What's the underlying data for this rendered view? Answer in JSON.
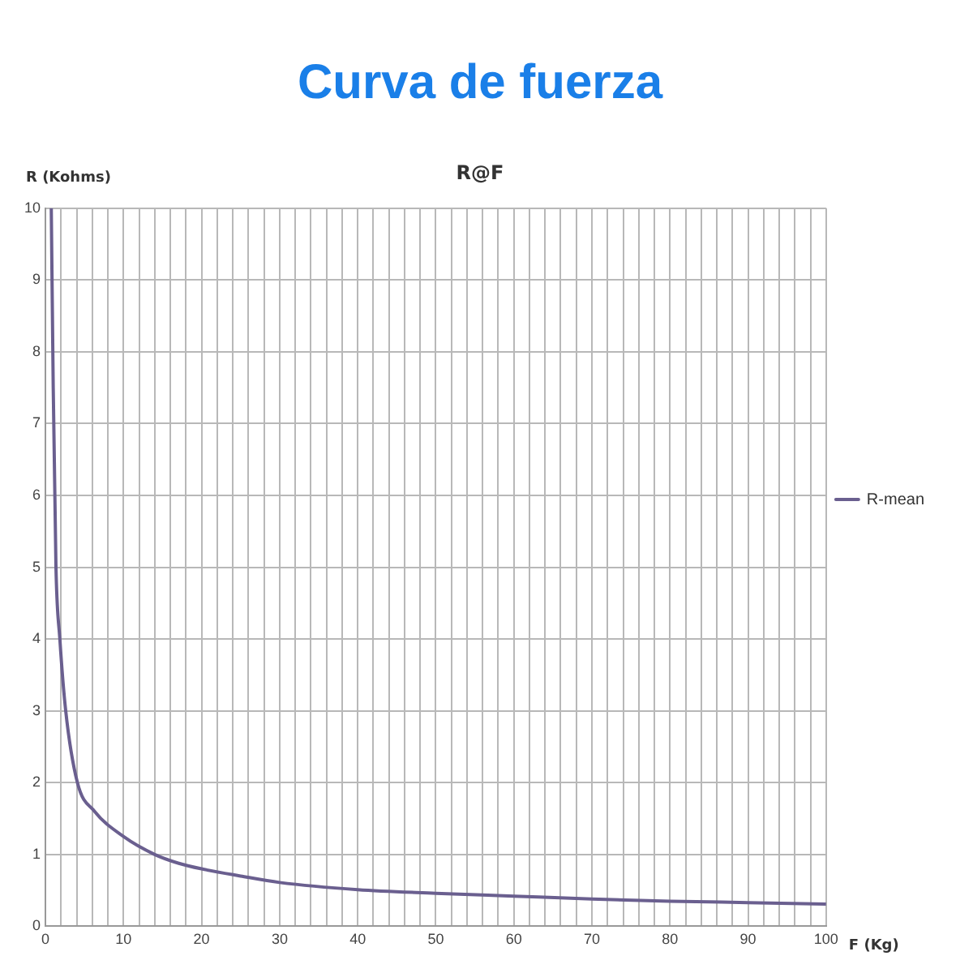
{
  "chart_data": {
    "type": "line",
    "title": "Curva de fuerza",
    "subtitle": "R@F",
    "xlabel": "F (Kg)",
    "ylabel": "R (Kohms)",
    "x": [
      0.75,
      1.0,
      1.35,
      1.85,
      2.6,
      4.1,
      6.3,
      10,
      14,
      17,
      20,
      25,
      30,
      40,
      50,
      60,
      70,
      80,
      90,
      100
    ],
    "series": [
      {
        "name": "R-mean",
        "color": "#6a5f8f",
        "values": [
          10,
          7.5,
          5,
          4,
          3,
          2,
          1.6,
          1.25,
          1.0,
          0.88,
          0.8,
          0.7,
          0.61,
          0.51,
          0.46,
          0.42,
          0.38,
          0.35,
          0.33,
          0.31
        ]
      }
    ],
    "xlim": [
      0,
      100
    ],
    "xticks": [
      0,
      {
        "value": 2,
        "label": null
      },
      {
        "value": 4,
        "label": null
      },
      {
        "value": 6,
        "label": null
      },
      {
        "value": 8,
        "label": null
      },
      10,
      {
        "value": 12,
        "label": null
      },
      {
        "value": 14,
        "label": null
      },
      {
        "value": 16,
        "label": null
      },
      {
        "value": 18,
        "label": null
      },
      20,
      {
        "value": 22,
        "label": null
      },
      {
        "value": 24,
        "label": null
      },
      {
        "value": 26,
        "label": null
      },
      {
        "value": 28,
        "label": null
      },
      30,
      {
        "value": 32,
        "label": null
      },
      {
        "value": 34,
        "label": null
      },
      {
        "value": 36,
        "label": null
      },
      {
        "value": 38,
        "label": null
      },
      40,
      {
        "value": 42,
        "label": null
      },
      {
        "value": 44,
        "label": null
      },
      {
        "value": 46,
        "label": null
      },
      {
        "value": 48,
        "label": null
      },
      50,
      {
        "value": 52,
        "label": null
      },
      {
        "value": 54,
        "label": null
      },
      {
        "value": 56,
        "label": null
      },
      {
        "value": 58,
        "label": null
      },
      60,
      {
        "value": 62,
        "label": null
      },
      {
        "value": 64,
        "label": null
      },
      {
        "value": 66,
        "label": null
      },
      {
        "value": 68,
        "label": null
      },
      70,
      {
        "value": 72,
        "label": null
      },
      {
        "value": 74,
        "label": null
      },
      {
        "value": 76,
        "label": null
      },
      {
        "value": 78,
        "label": null
      },
      80,
      {
        "value": 82,
        "label": null
      },
      {
        "value": 84,
        "label": null
      },
      {
        "value": 86,
        "label": null
      },
      {
        "value": 88,
        "label": null
      },
      90,
      {
        "value": 92,
        "label": null
      },
      {
        "value": 94,
        "label": null
      },
      {
        "value": 96,
        "label": null
      },
      {
        "value": 98,
        "label": null
      },
      100
    ],
    "ylim": [
      0,
      10
    ],
    "yticks": [
      0,
      1,
      2,
      3,
      4,
      5,
      6,
      7,
      8,
      9,
      10
    ],
    "grid": true,
    "legend": "right",
    "marker": "none",
    "line_style": "solid"
  }
}
